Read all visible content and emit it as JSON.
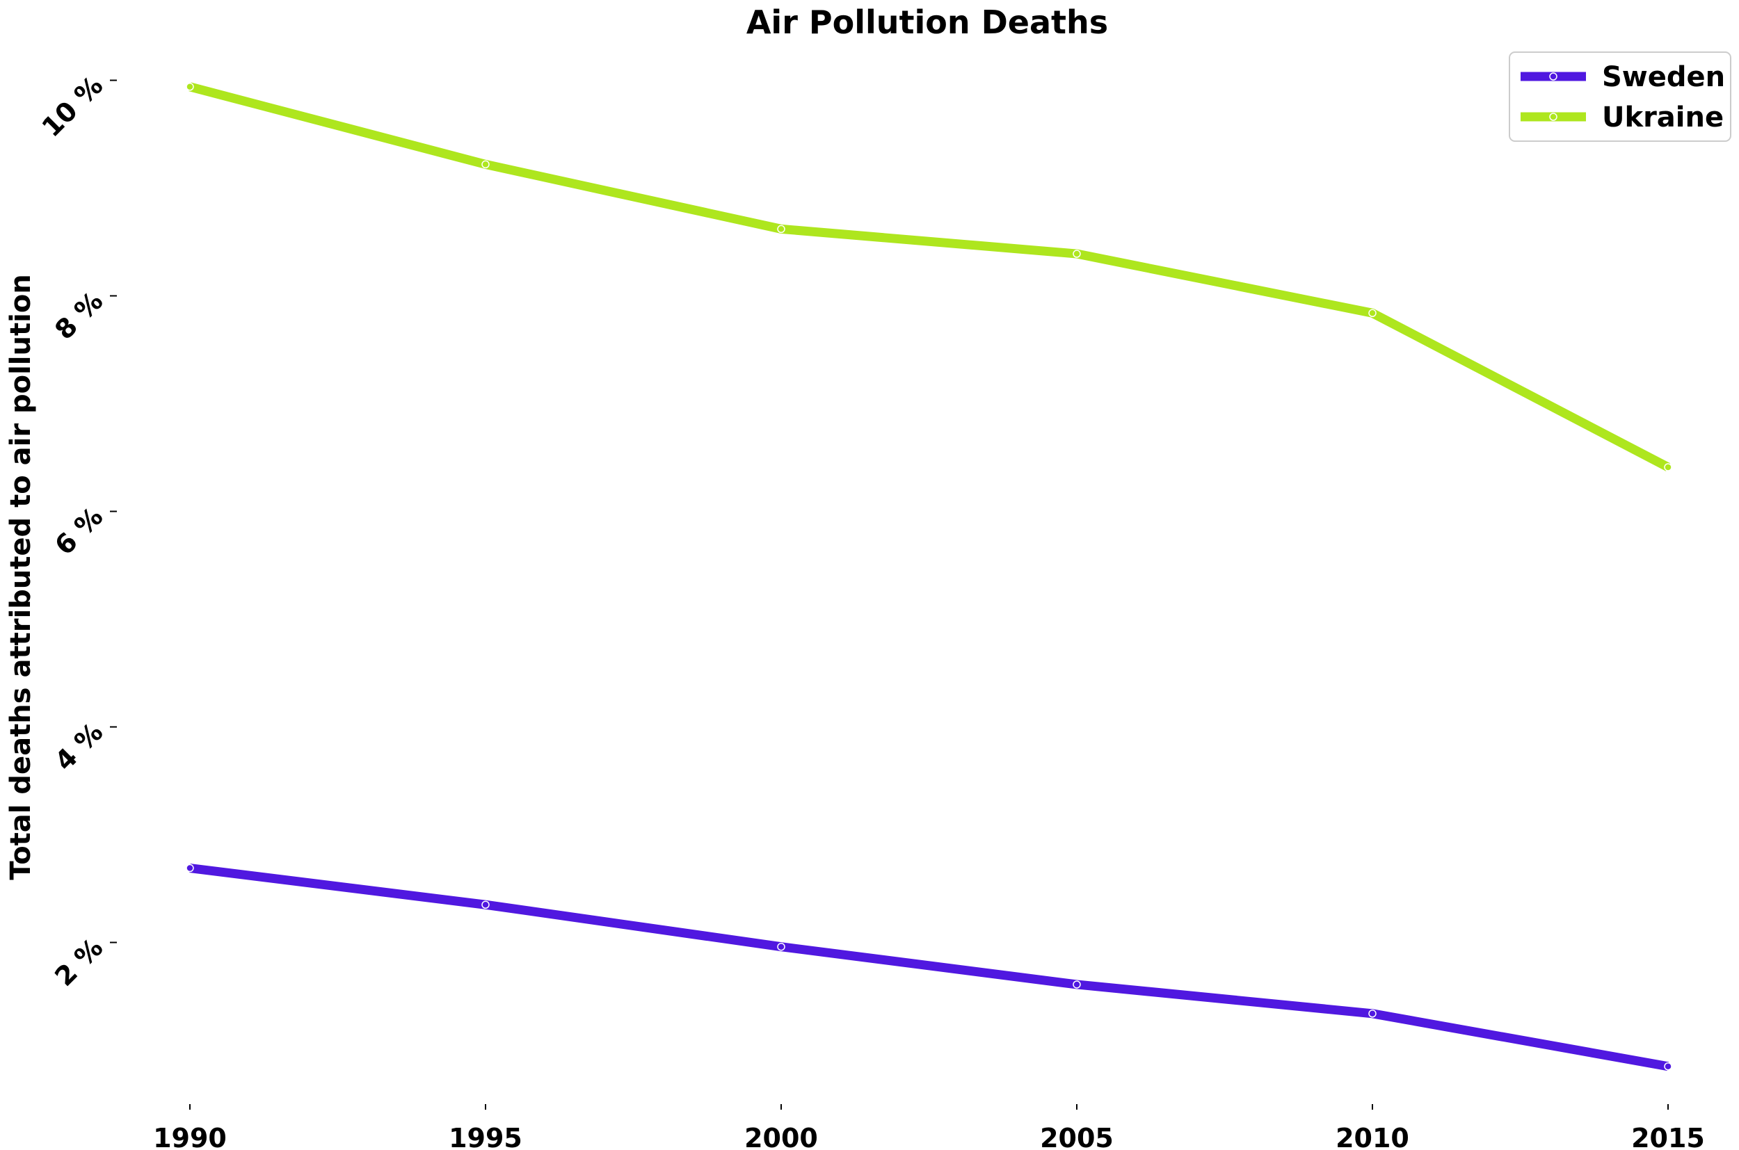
{
  "chart_data": {
    "type": "line",
    "title": "Air Pollution Deaths",
    "xlabel": "",
    "ylabel": "Total deaths attributed to air pollution",
    "x": [
      1990,
      1995,
      2000,
      2005,
      2010,
      2015
    ],
    "x_tick_labels": [
      "1990",
      "1995",
      "2000",
      "2005",
      "2010",
      "2015"
    ],
    "y_ticks": [
      2,
      4,
      6,
      8,
      10
    ],
    "y_tick_labels": [
      "2 %",
      "4 %",
      "6 %",
      "8 %",
      "10 %"
    ],
    "xlim": [
      1989,
      2016
    ],
    "ylim": [
      0.5,
      10.45
    ],
    "grid": false,
    "legend_position": "top-right",
    "series": [
      {
        "name": "Sweden",
        "color": "#5018e0",
        "values": [
          2.69,
          2.35,
          1.96,
          1.61,
          1.34,
          0.85
        ]
      },
      {
        "name": "Ukraine",
        "color": "#aee61e",
        "values": [
          9.94,
          9.22,
          8.62,
          8.39,
          7.84,
          6.41
        ]
      }
    ]
  }
}
